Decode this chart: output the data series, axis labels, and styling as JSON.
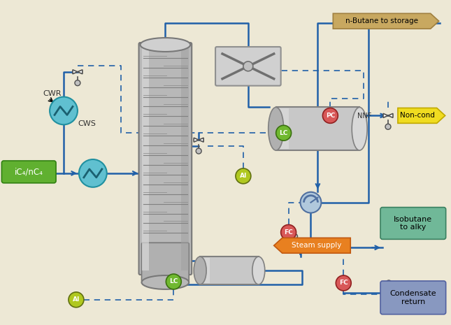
{
  "bg_color": "#EDE8D5",
  "blue": "#2060A8",
  "cyan_hx": "#60C0D0",
  "green_inst": "#80C040",
  "yellow_inst": "#C8D020",
  "pink_inst": "#E06060",
  "tan_arrow": "#C0A060",
  "yellow_arrow": "#F0DC20",
  "orange_box": "#E88020",
  "teal_box": "#60B090",
  "blue_box": "#8090B8",
  "green_feed": "#60B840",
  "labels": {
    "n_butane": "n-Butane to storage",
    "non_cond": "Non-cond",
    "isobutane": "Isobutane\nto alky",
    "steam": "Steam supply",
    "condensate": "Condensate\nreturn",
    "cwr": "CWR",
    "cws": "CWS",
    "ic4nc4": "iC₄/nC₄",
    "nnf": "NNF"
  }
}
